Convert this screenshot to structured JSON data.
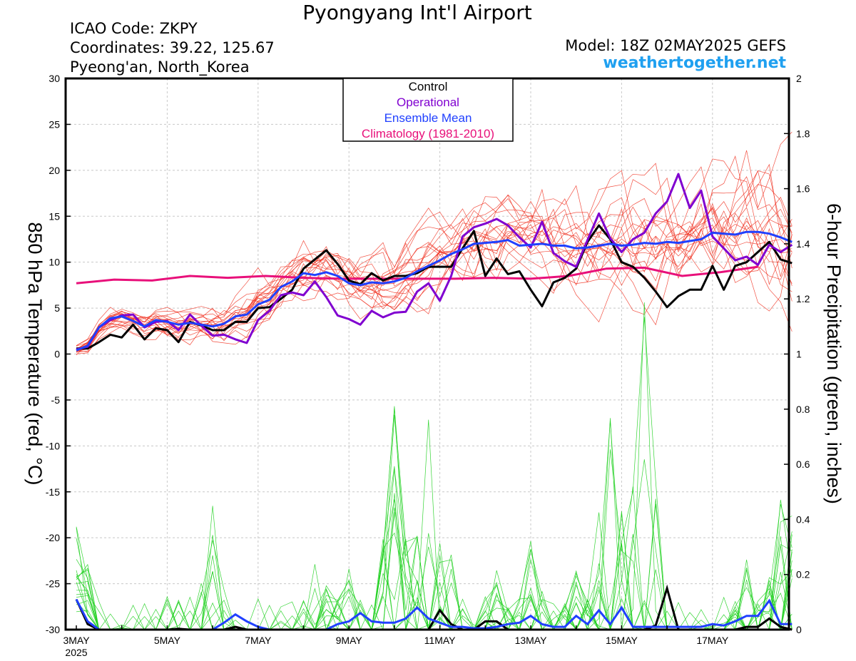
{
  "header": {
    "title": "Pyongyang Int'l Airport",
    "icao": "ICAO Code: ZKPY",
    "coordinates": "Coordinates: 39.22, 125.67",
    "location": "Pyeong'an, North_Korea",
    "model": "Model: 18Z 02MAY2025 GEFS",
    "site": "weathertogether.net"
  },
  "colors": {
    "control": "#000000",
    "operational": "#8000d0",
    "ensemble_mean": "#2040ff",
    "climatology": "#e8107a",
    "temperature_members": "#f03020",
    "precip_members": "#20d020",
    "site": "#1fa0f0"
  },
  "chart_data": {
    "type": "line",
    "title": "Pyongyang Int'l Airport",
    "xlabel": "",
    "ylabel": "850 hPa Temperature (red, °C)",
    "y2label": "6-hour Precipitation (green, inches)",
    "x_start": "3MAY 2025 00Z",
    "x_step_hours": 6,
    "x_ticks": [
      "3MAY",
      "5MAY",
      "7MAY",
      "9MAY",
      "11MAY",
      "13MAY",
      "15MAY",
      "17MAY"
    ],
    "x_year": "2025",
    "xlim": [
      "3MAY 2025 00Z",
      "18MAY 2025 18Z"
    ],
    "ylim": [
      -30,
      30
    ],
    "y_ticks": [
      30,
      25,
      20,
      15,
      10,
      5,
      0,
      -5,
      -10,
      -15,
      -20,
      -25,
      -30
    ],
    "y2lim": [
      0,
      2
    ],
    "y2_ticks": [
      "2",
      "1.8",
      "1.6",
      "1.4",
      "1.2",
      "1",
      "0.8",
      "0.6",
      "0.4",
      "0.2",
      "0"
    ],
    "grid": true,
    "legend_position": "top-center",
    "legend": [
      "Control",
      "Operational",
      "Ensemble Mean",
      "Climatology (1981-2010)"
    ],
    "climatology": [
      7.7,
      8.1,
      8.0,
      8.5,
      8.3,
      8.5,
      8.3,
      8.2,
      8.2,
      8.2,
      8.2,
      8.3,
      8.2,
      8.5,
      9.3,
      9.4,
      8.5,
      8.9,
      9.5
    ],
    "climatology_x_step_hours": 20,
    "series": [
      {
        "name": "Control",
        "values": [
          0.6,
          0.6,
          1.3,
          2.1,
          1.8,
          3.2,
          1.6,
          2.8,
          2.6,
          1.3,
          3.5,
          3.1,
          2.6,
          2.6,
          3.5,
          3.5,
          5.0,
          5.1,
          6.0,
          7.0,
          9.3,
          10.3,
          11.3,
          9.8,
          8.0,
          7.6,
          8.8,
          8.0,
          8.5,
          8.5,
          8.8,
          9.5,
          9.5,
          9.5,
          11.5,
          13.4,
          8.5,
          10.4,
          8.7,
          9.0,
          7.0,
          5.2,
          7.8,
          8.3,
          9.3,
          12.2,
          14.0,
          12.5,
          10.0,
          9.5,
          8.3,
          6.8,
          5.1,
          6.3,
          7.0,
          7.0,
          9.6,
          7.0,
          9.6,
          10.0,
          11.1,
          12.2,
          10.3,
          9.9
        ]
      },
      {
        "name": "Operational",
        "values": [
          0.5,
          0.8,
          2.9,
          3.7,
          4.2,
          4.3,
          2.9,
          3.5,
          3.6,
          2.6,
          4.3,
          3.1,
          2.0,
          2.1,
          1.6,
          1.2,
          3.7,
          4.7,
          6.4,
          6.7,
          6.4,
          7.9,
          6.2,
          4.2,
          3.8,
          3.2,
          4.7,
          4.0,
          4.5,
          4.6,
          6.8,
          7.7,
          5.8,
          8.5,
          12.8,
          13.8,
          14.2,
          14.7,
          14.0,
          12.7,
          11.6,
          14.4,
          11.0,
          10.1,
          9.5,
          12.4,
          15.3,
          12.6,
          11.1,
          12.5,
          13.2,
          15.3,
          16.6,
          19.6,
          15.9,
          17.8,
          12.8,
          11.5,
          10.2,
          10.6,
          9.7,
          11.9,
          11.1,
          11.9
        ]
      },
      {
        "name": "Ensemble Mean",
        "values": [
          0.4,
          0.9,
          2.9,
          3.9,
          4.1,
          3.6,
          3.0,
          3.7,
          3.5,
          3.2,
          3.4,
          3.2,
          3.0,
          3.3,
          4.1,
          4.3,
          5.4,
          5.9,
          7.3,
          7.9,
          8.8,
          8.6,
          8.9,
          8.5,
          7.7,
          7.5,
          7.8,
          7.7,
          7.9,
          8.3,
          9.0,
          9.6,
          10.2,
          10.9,
          11.4,
          12.0,
          12.1,
          12.2,
          12.4,
          11.8,
          11.9,
          12.0,
          11.8,
          11.8,
          11.5,
          11.6,
          11.8,
          12.0,
          11.8,
          11.9,
          12.1,
          12.0,
          12.2,
          12.1,
          12.3,
          12.5,
          13.2,
          13.1,
          13.0,
          13.3,
          13.3,
          13.1,
          12.7,
          12.2
        ]
      }
    ],
    "precip_series": [
      {
        "name": "Control",
        "values": [
          0.11,
          0.02,
          0,
          0,
          0,
          0,
          0,
          0,
          0,
          0.003,
          0,
          0,
          0,
          0,
          0.01,
          0,
          0,
          0,
          0,
          0,
          0,
          0,
          0,
          0,
          0,
          0,
          0,
          0,
          0,
          0,
          0,
          0,
          0.07,
          0.02,
          0,
          0,
          0.03,
          0.03,
          0,
          0,
          0,
          0,
          0,
          0,
          0,
          0,
          0,
          0,
          0,
          0,
          0,
          0.015,
          0.15,
          0,
          0,
          0,
          0,
          0,
          0,
          0.01,
          0.01,
          0.04,
          0.01,
          0
        ]
      },
      {
        "name": "Ensemble Mean",
        "values": [
          0.11,
          0.03,
          0,
          0,
          0,
          0,
          0,
          0,
          0,
          0,
          0,
          0,
          0,
          0.025,
          0.055,
          0.03,
          0.01,
          0,
          0,
          0,
          0,
          0,
          0,
          0.02,
          0.03,
          0.06,
          0.03,
          0.025,
          0.025,
          0.04,
          0.08,
          0.04,
          0.025,
          0.01,
          0.01,
          0.005,
          0.005,
          0.01,
          0.02,
          0.025,
          0.05,
          0.02,
          0.01,
          0.01,
          0.05,
          0.02,
          0.07,
          0.02,
          0.08,
          0.01,
          0.01,
          0.01,
          0.01,
          0.01,
          0.01,
          0.01,
          0.02,
          0.015,
          0.03,
          0.05,
          0.05,
          0.105,
          0.02,
          0.02
        ]
      }
    ]
  }
}
